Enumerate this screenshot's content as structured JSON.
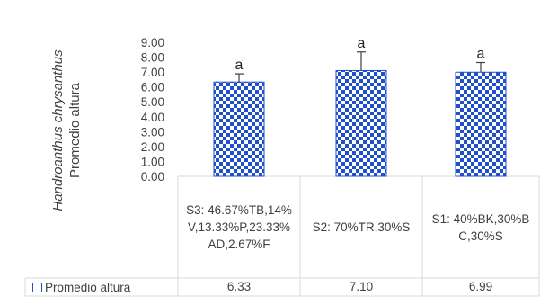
{
  "chart_data": {
    "type": "bar",
    "categories": [
      "S3: 46.67%TB,14%V,13.33%P,23.33%AD,2.67%F",
      "S2: 70%TR,30%S",
      "S1: 40%BK,30%BC,30%S"
    ],
    "series": [
      {
        "name": "Promedio altura",
        "values": [
          6.33,
          7.1,
          6.99
        ],
        "errors": [
          0.55,
          1.25,
          0.65
        ],
        "sig_letters": [
          "a",
          "a",
          "a"
        ]
      }
    ],
    "value_labels": [
      "6.33",
      "7.10",
      "6.99"
    ],
    "ylabel_line1": "Promedio altura",
    "ylabel_line2": "Handroanthus chrysanthus",
    "ylim": [
      0,
      9
    ],
    "yticks": [
      "0.00",
      "1.00",
      "2.00",
      "3.00",
      "4.00",
      "5.00",
      "6.00",
      "7.00",
      "8.00",
      "9.00"
    ],
    "data_table": true,
    "colors": {
      "bar_pattern": "#1f4fcc",
      "grid": "#d9d9d9",
      "text": "#404040"
    }
  }
}
